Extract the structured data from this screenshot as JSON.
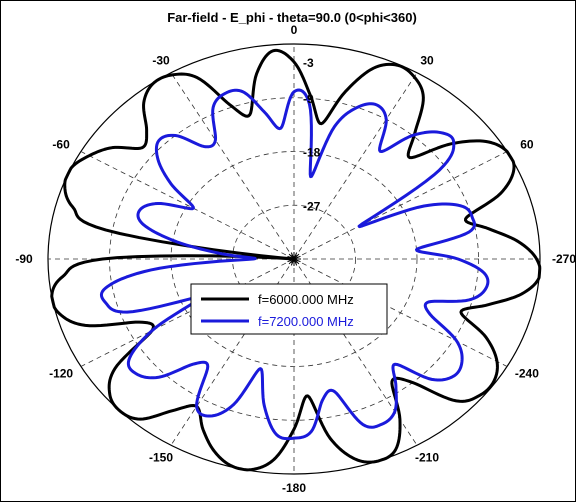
{
  "chart_data": {
    "type": "polar",
    "title": "Far-field - E_phi - theta=90.0 (0<phi<360)",
    "angle_ticks": [
      {
        "angle": 0,
        "label": "0"
      },
      {
        "angle": 30,
        "label": "30"
      },
      {
        "angle": 60,
        "label": "60"
      },
      {
        "angle": 90,
        "label": "-270"
      },
      {
        "angle": 120,
        "label": "-240"
      },
      {
        "angle": 150,
        "label": "-210"
      },
      {
        "angle": 180,
        "label": "-180"
      },
      {
        "angle": 210,
        "label": "-150"
      },
      {
        "angle": 240,
        "label": "-120"
      },
      {
        "angle": 270,
        "label": "-90"
      },
      {
        "angle": 300,
        "label": "-60"
      },
      {
        "angle": 330,
        "label": "-30"
      }
    ],
    "radial_ticks": [
      "-3",
      "-9",
      "-18",
      "-27"
    ],
    "rlim": [
      -36,
      0
    ],
    "grid": true,
    "legend_position": "center-bottom",
    "series": [
      {
        "name": "f=6000.000 MHz",
        "color": "#000000",
        "values": [
          -3,
          -8.5,
          -13,
          -7,
          -2,
          -0.2,
          -0.8,
          -3,
          -8.5,
          -12,
          -6,
          -1.7,
          0,
          -0.5,
          -3.8,
          -10,
          -7,
          -3,
          -0.5,
          0,
          -2.2,
          -6.5,
          -10,
          -5,
          -1.7,
          -0.3,
          -0.5,
          -2.4,
          -9,
          -11,
          -5,
          -0.8,
          0,
          -1.3,
          -5.5,
          -13,
          -7.5,
          -2.3,
          -0.2,
          -0.2,
          -1.8,
          -4.5,
          -7.5,
          -5,
          -1,
          0,
          -0.8,
          -4,
          -12,
          -11,
          -3.5,
          -0.5,
          0,
          -2,
          -8,
          -36,
          -8,
          -2.5,
          -0.3,
          0,
          -1.4,
          -3.5,
          -7,
          -5.5,
          -1.8,
          -0.1,
          -0.4,
          -2.5,
          -8.5,
          -11,
          -4.5,
          -1
        ]
      },
      {
        "name": "f=7200.000 MHz",
        "color": "#1a1adb",
        "values": [
          -8,
          -10,
          -22,
          -13,
          -9,
          -7.5,
          -9,
          -14,
          -9,
          -6,
          -5.5,
          -10,
          -25,
          -15,
          -10,
          -9,
          -10,
          -18,
          -12,
          -8,
          -7.5,
          -9.5,
          -15,
          -14,
          -8.5,
          -6,
          -5.5,
          -7.5,
          -13,
          -10,
          -6.5,
          -5.5,
          -6.5,
          -13,
          -12,
          -7,
          -6,
          -6.5,
          -11,
          -17,
          -10,
          -7,
          -7.5,
          -14,
          -13,
          -8,
          -6,
          -6.5,
          -12,
          -21,
          -10,
          -7.5,
          -8,
          -15,
          -30,
          -25,
          -18,
          -13,
          -12,
          -14,
          -19,
          -14,
          -10,
          -8,
          -9,
          -13,
          -13,
          -8,
          -6.5,
          -7,
          -11,
          -14
        ]
      }
    ]
  }
}
